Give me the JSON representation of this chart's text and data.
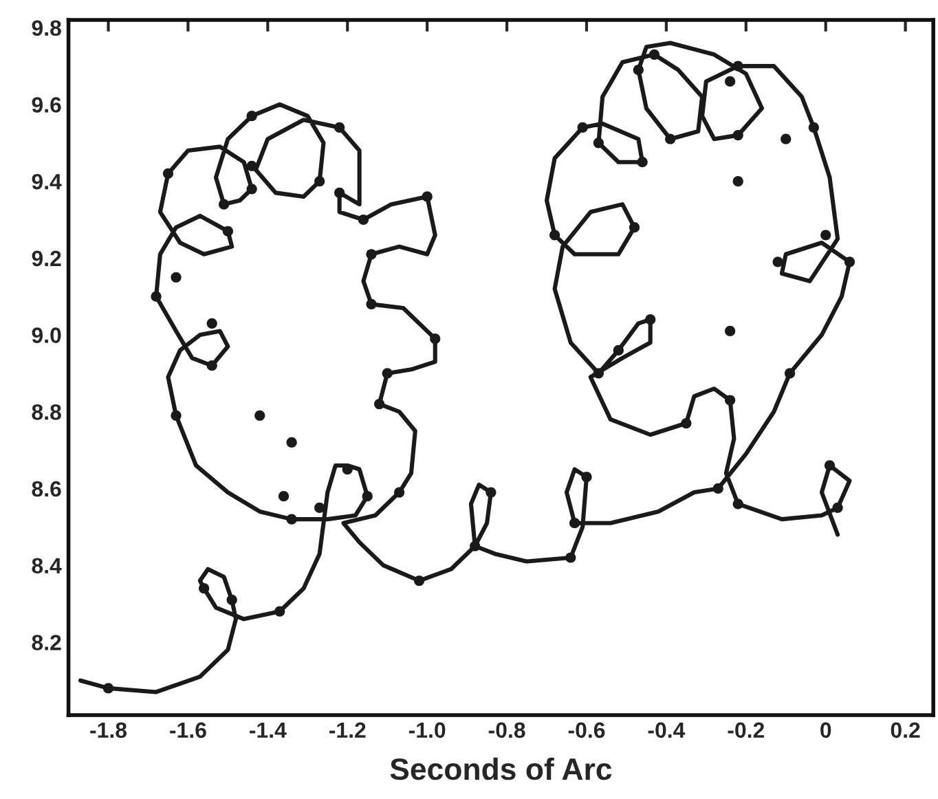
{
  "chart_data": {
    "type": "line",
    "xlabel": "Seconds of Arc",
    "xlim": [
      -1.9,
      0.27
    ],
    "ylim": [
      8.01,
      9.82
    ],
    "xticks": [
      -1.8,
      -1.6,
      -1.4,
      -1.2,
      {
        "value": -1.0,
        "label": "-1.0"
      },
      -0.8,
      -0.6,
      -0.4,
      -0.2,
      0,
      0.2
    ],
    "yticks": [
      8.2,
      8.4,
      8.6,
      8.8,
      {
        "value": 9.0,
        "label": "9.0"
      },
      9.2,
      9.4,
      9.6,
      9.8
    ],
    "line_style": "solid",
    "grid": false,
    "series": [
      {
        "marker": "none",
        "color": "#1a1a1a",
        "x": [
          -1.87,
          -1.8,
          -1.68,
          -1.57,
          -1.5,
          -1.48,
          -1.49,
          -1.51,
          -1.55,
          -1.57,
          -1.56,
          -1.53,
          -1.46,
          -1.37,
          -1.31,
          -1.27,
          -1.26,
          -1.25,
          -1.23,
          -1.2,
          -1.17,
          -1.15,
          -1.18,
          -1.25,
          -1.34,
          -1.42,
          -1.5,
          -1.58,
          -1.63,
          -1.65,
          -1.62,
          -1.57,
          -1.52,
          -1.5,
          -1.54,
          -1.59,
          -1.63,
          -1.68,
          -1.67,
          -1.63,
          -1.57,
          -1.5,
          -1.49,
          -1.56,
          -1.62,
          -1.67,
          -1.65,
          -1.6,
          -1.52,
          -1.46,
          -1.44,
          -1.47,
          -1.51,
          -1.53,
          -1.5,
          -1.44,
          -1.37,
          -1.3,
          -1.26,
          -1.27,
          -1.31,
          -1.38,
          -1.43,
          -1.4,
          -1.31,
          -1.22,
          -1.17,
          -1.17,
          -1.22,
          -1.22,
          -1.16,
          -1.09,
          -1.0,
          -0.98,
          -1.0,
          -1.07,
          -1.14,
          -1.16,
          -1.14,
          -1.06,
          -0.98,
          -0.98,
          -1.04,
          -1.1,
          -1.12,
          -1.07,
          -1.03,
          -1.04,
          -1.07,
          -1.13,
          -1.21,
          -1.17,
          -1.11,
          -1.02,
          -0.94,
          -0.88,
          -0.85,
          -0.84,
          -0.87,
          -0.89,
          -0.88,
          -0.83,
          -0.75,
          -0.64,
          -0.61,
          -0.6,
          -0.63,
          -0.65,
          -0.63,
          -0.54,
          -0.42,
          -0.33,
          -0.27,
          -0.2,
          -0.13,
          -0.09,
          -0.01,
          0.04,
          0.06,
          -0.01,
          -0.1,
          -0.11,
          -0.04,
          0.03,
          0.01,
          -0.03,
          -0.06,
          -0.13,
          -0.22,
          -0.3,
          -0.31,
          -0.28,
          -0.22,
          -0.16,
          -0.2,
          -0.28,
          -0.39,
          -0.45,
          -0.47,
          -0.45,
          -0.39,
          -0.32,
          -0.31,
          -0.37,
          -0.43,
          -0.51,
          -0.56,
          -0.57,
          -0.52,
          -0.46,
          -0.47,
          -0.56,
          -0.61,
          -0.68,
          -0.7,
          -0.68,
          -0.63,
          -0.52,
          -0.48,
          -0.51,
          -0.59,
          -0.66,
          -0.68,
          -0.64,
          -0.57,
          -0.52,
          -0.47,
          -0.44,
          -0.44,
          -0.51,
          -0.59,
          -0.54,
          -0.44,
          -0.35,
          -0.33,
          -0.28,
          -0.24,
          -0.23,
          -0.25,
          -0.22,
          -0.11,
          -0.01,
          0.03,
          0.06,
          0.01,
          -0.01,
          0.03
        ],
        "values": [
          8.1,
          8.08,
          8.07,
          8.11,
          8.18,
          8.26,
          8.31,
          8.37,
          8.39,
          8.36,
          8.34,
          8.29,
          8.26,
          8.28,
          8.34,
          8.43,
          8.51,
          8.59,
          8.66,
          8.66,
          8.65,
          8.58,
          8.53,
          8.52,
          8.52,
          8.54,
          8.59,
          8.66,
          8.79,
          8.89,
          8.96,
          9.0,
          9.01,
          8.97,
          8.92,
          8.94,
          9.01,
          9.1,
          9.21,
          9.28,
          9.31,
          9.27,
          9.23,
          9.21,
          9.24,
          9.32,
          9.42,
          9.48,
          9.49,
          9.45,
          9.38,
          9.35,
          9.34,
          9.41,
          9.51,
          9.57,
          9.6,
          9.57,
          9.5,
          9.4,
          9.36,
          9.37,
          9.43,
          9.51,
          9.56,
          9.54,
          9.48,
          9.34,
          9.37,
          9.32,
          9.3,
          9.34,
          9.36,
          9.26,
          9.21,
          9.23,
          9.21,
          9.14,
          9.08,
          9.07,
          8.99,
          8.93,
          8.91,
          8.9,
          8.82,
          8.8,
          8.75,
          8.64,
          8.59,
          8.53,
          8.51,
          8.46,
          8.4,
          8.36,
          8.39,
          8.45,
          8.51,
          8.59,
          8.61,
          8.56,
          8.45,
          8.43,
          8.41,
          8.42,
          8.5,
          8.63,
          8.65,
          8.59,
          8.51,
          8.51,
          8.54,
          8.59,
          8.6,
          8.69,
          8.8,
          8.9,
          9.0,
          9.1,
          9.19,
          9.24,
          9.21,
          9.16,
          9.14,
          9.25,
          9.41,
          9.54,
          9.62,
          9.7,
          9.7,
          9.66,
          9.57,
          9.51,
          9.52,
          9.59,
          9.68,
          9.73,
          9.76,
          9.75,
          9.69,
          9.59,
          9.51,
          9.53,
          9.62,
          9.69,
          9.73,
          9.71,
          9.62,
          9.5,
          9.45,
          9.45,
          9.51,
          9.55,
          9.54,
          9.46,
          9.35,
          9.26,
          9.21,
          9.21,
          9.28,
          9.34,
          9.32,
          9.23,
          9.12,
          8.98,
          8.9,
          8.96,
          9.03,
          9.04,
          8.98,
          8.94,
          8.89,
          8.78,
          8.74,
          8.77,
          8.84,
          8.86,
          8.83,
          8.73,
          8.64,
          8.56,
          8.52,
          8.53,
          8.55,
          8.62,
          8.66,
          8.59,
          8.48
        ]
      },
      {
        "type": "scatter",
        "marker": "circle",
        "color": "#1a1a1a",
        "x": [
          -1.8,
          -1.56,
          -1.49,
          -1.37,
          -1.36,
          -1.34,
          -1.27,
          -1.2,
          -1.15,
          -1.07,
          -1.02,
          -0.88,
          -0.84,
          -1.63,
          -1.42,
          -1.34,
          -1.44,
          -1.22,
          -1.44,
          -1.27,
          -1.65,
          -1.44,
          -1.51,
          -1.22,
          -1.16,
          -1.0,
          -1.5,
          -1.63,
          -1.68,
          -1.14,
          -1.14,
          -0.98,
          -1.54,
          -1.54,
          -1.1,
          -1.12,
          -0.57,
          -0.09,
          -0.35,
          -0.24,
          -0.27,
          -0.22,
          0.01,
          0.03,
          -0.6,
          -0.63,
          -0.64,
          -0.43,
          -0.47,
          -0.22,
          -0.24,
          -0.61,
          -0.57,
          -0.46,
          -0.39,
          -0.22,
          -0.1,
          -0.03,
          -0.22,
          -0.68,
          -0.48,
          0.0,
          0.06,
          -0.12,
          -0.44,
          -0.52,
          -0.24
        ],
        "values": [
          8.08,
          8.34,
          8.31,
          8.28,
          8.58,
          8.52,
          8.55,
          8.65,
          8.58,
          8.59,
          8.36,
          8.45,
          8.59,
          8.79,
          8.79,
          8.72,
          9.57,
          9.54,
          9.44,
          9.4,
          9.42,
          9.38,
          9.34,
          9.37,
          9.3,
          9.36,
          9.27,
          9.15,
          9.1,
          9.21,
          9.08,
          8.99,
          9.03,
          8.92,
          8.9,
          8.82,
          8.9,
          8.9,
          8.77,
          8.83,
          8.6,
          8.56,
          8.66,
          8.55,
          8.63,
          8.51,
          8.42,
          9.73,
          9.69,
          9.7,
          9.66,
          9.54,
          9.5,
          9.45,
          9.51,
          9.52,
          9.51,
          9.54,
          9.4,
          9.26,
          9.28,
          9.26,
          9.19,
          9.19,
          9.04,
          8.96,
          9.01
        ]
      }
    ]
  }
}
